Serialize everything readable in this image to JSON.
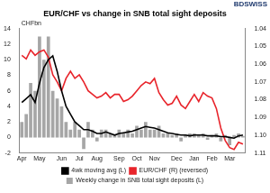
{
  "chart_data": {
    "type": "bar",
    "title": "EUR/CHF vs change in SNB total sight deposits",
    "annotations": [
      "CHFbn",
      "BDSWISS"
    ],
    "categories": [
      "Apr",
      null,
      null,
      null,
      "May",
      null,
      null,
      null,
      null,
      "Jun",
      null,
      null,
      null,
      "Jul",
      null,
      null,
      null,
      "Aug",
      null,
      null,
      null,
      null,
      "Sep",
      null,
      null,
      null,
      "Oct",
      null,
      null,
      null,
      "Nov",
      null,
      null,
      null,
      null,
      "Dec",
      null,
      null,
      null,
      "Jan",
      null,
      null,
      null,
      "Feb",
      null,
      null,
      null,
      "Mar",
      null,
      null,
      null
    ],
    "series": [
      {
        "name": "Weekly change in SNB total sight deposits (L)",
        "type": "bar",
        "color": "#a6a6a6",
        "values": [
          2,
          3,
          7,
          6,
          13,
          10,
          13,
          6,
          5,
          4,
          2,
          1,
          2,
          1,
          -1.5,
          2,
          1,
          -0.5,
          1,
          1,
          0.5,
          0.3,
          1,
          0.5,
          1,
          0.5,
          1.5,
          1,
          2,
          1,
          1,
          1.5,
          0.5,
          0.5,
          0.3,
          0.5,
          -0.5,
          0.3,
          0.5,
          0.5,
          0.3,
          0.5,
          -0.3,
          0.3,
          0.5,
          -0.5,
          0.3,
          -1,
          0.3,
          0.5,
          0.2
        ]
      },
      {
        "name": "4wk moving avg (L)",
        "type": "line",
        "color": "#000000",
        "values": [
          4.5,
          5,
          5.5,
          4.5,
          7,
          9,
          10,
          10.5,
          8.5,
          6,
          4,
          3,
          2,
          1.5,
          1,
          1,
          0.8,
          0.5,
          0.5,
          0.7,
          0.5,
          0.3,
          0.5,
          0.6,
          0.7,
          0.8,
          1,
          1.2,
          1.4,
          1.3,
          1.2,
          1,
          0.8,
          0.6,
          0.5,
          0.4,
          0.3,
          0.3,
          0.2,
          0.3,
          0.3,
          0.3,
          0.2,
          0.2,
          0.2,
          0.1,
          0.1,
          0,
          -0.1,
          0.2,
          0.3
        ]
      },
      {
        "name": "EUR/CHF (R) (reversed)",
        "type": "line",
        "color": "#e8242b",
        "axis": "y2",
        "values": [
          1.055,
          1.057,
          1.052,
          1.055,
          1.053,
          1.052,
          1.056,
          1.066,
          1.07,
          1.075,
          1.068,
          1.064,
          1.068,
          1.066,
          1.07,
          1.075,
          1.077,
          1.079,
          1.078,
          1.076,
          1.079,
          1.077,
          1.077,
          1.081,
          1.08,
          1.078,
          1.075,
          1.072,
          1.07,
          1.071,
          1.068,
          1.076,
          1.08,
          1.083,
          1.082,
          1.078,
          1.083,
          1.085,
          1.081,
          1.077,
          1.081,
          1.076,
          1.078,
          1.079,
          1.085,
          1.096,
          1.103,
          1.107,
          1.108,
          1.104,
          1.105
        ]
      }
    ],
    "ylim": [
      -2,
      14
    ],
    "yticks": [
      -2,
      0,
      2,
      4,
      6,
      8,
      10,
      12,
      14
    ],
    "y2lim": [
      1.11,
      1.04
    ],
    "y2ticks": [
      1.04,
      1.05,
      1.06,
      1.07,
      1.08,
      1.09,
      {
        "value": 1.1,
        "label": "1.10"
      },
      1.11
    ],
    "grid": false,
    "legend": "bottom"
  }
}
